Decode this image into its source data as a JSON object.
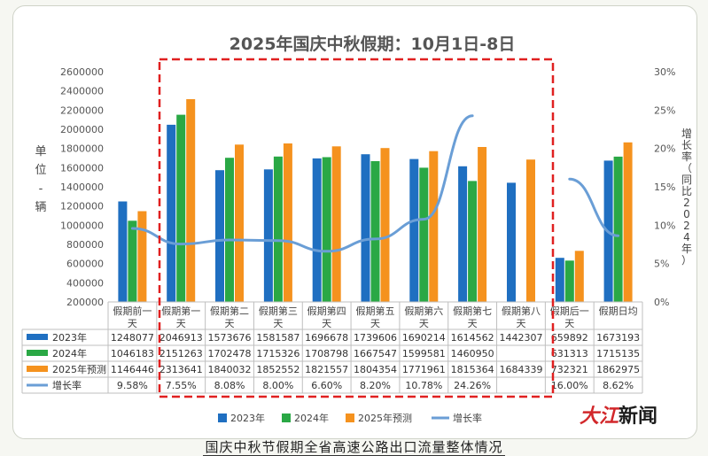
{
  "caption": "国庆中秋节假期全省高速公路出口流量整体情况",
  "watermark": {
    "brand": "大江",
    "suffix": "新闻"
  },
  "colors": {
    "y2023": "#1f6fc1",
    "y2024": "#2aa845",
    "y2025": "#f5921e",
    "growth": "#6a9ed6",
    "highlight": "#e02020"
  },
  "chart_data": {
    "type": "bar",
    "title": "2025年国庆中秋假期：10月1日-8日",
    "ylabel": "单位-辆",
    "y2label": "增长率（同比2024年）",
    "ylim": [
      200000,
      2600000
    ],
    "y_ticks": [
      "200000",
      "400000",
      "600000",
      "800000",
      "1000000",
      "1200000",
      "1400000",
      "1600000",
      "1800000",
      "2000000",
      "2200000",
      "2400000",
      "2600000"
    ],
    "y2lim": [
      0,
      30
    ],
    "y2_ticks": [
      "0%",
      "5%",
      "10%",
      "15%",
      "20%",
      "25%",
      "30%"
    ],
    "categories": [
      "假期前一天",
      "假期第一天",
      "假期第二天",
      "假期第三天",
      "假期第四天",
      "假期第五天",
      "假期第六天",
      "假期第七天",
      "假期第八天",
      "假期后一天",
      "假期日均"
    ],
    "series": [
      {
        "name": "2023年",
        "values": [
          1248077,
          2046913,
          1573676,
          1581587,
          1696678,
          1739606,
          1690214,
          1614562,
          1442307,
          659892,
          1673193
        ]
      },
      {
        "name": "2024年",
        "values": [
          1046183,
          2151263,
          1702478,
          1715326,
          1708798,
          1667547,
          1599581,
          1460950,
          null,
          631313,
          1715135
        ]
      },
      {
        "name": "2025年预测",
        "values": [
          1146446,
          2313641,
          1840032,
          1852552,
          1821557,
          1804354,
          1771961,
          1815364,
          1684339,
          732321,
          1862975
        ]
      }
    ],
    "growth": {
      "name": "增长率",
      "values": [
        9.58,
        7.55,
        8.08,
        8.0,
        6.6,
        8.2,
        10.78,
        24.26,
        null,
        16.0,
        8.62
      ],
      "labels": [
        "9.58%",
        "7.55%",
        "8.08%",
        "8.00%",
        "6.60%",
        "8.20%",
        "10.78%",
        "24.26%",
        "",
        "16.00%",
        "8.62%"
      ]
    },
    "table": {
      "rows": [
        {
          "name": "2023年",
          "cells": [
            "1248077",
            "2046913",
            "1573676",
            "1581587",
            "1696678",
            "1739606",
            "1690214",
            "1614562",
            "1442307",
            "659892",
            "1673193"
          ]
        },
        {
          "name": "2024年",
          "cells": [
            "1046183",
            "2151263",
            "1702478",
            "1715326",
            "1708798",
            "1667547",
            "1599581",
            "1460950",
            "",
            "631313",
            "1715135"
          ]
        },
        {
          "name": "2025年预测",
          "cells": [
            "1146446",
            "2313641",
            "1840032",
            "1852552",
            "1821557",
            "1804354",
            "1771961",
            "1815364",
            "1684339",
            "732321",
            "1862975"
          ]
        },
        {
          "name": "增长率",
          "cells": [
            "9.58%",
            "7.55%",
            "8.08%",
            "8.00%",
            "6.60%",
            "8.20%",
            "10.78%",
            "24.26%",
            "",
            "16.00%",
            "8.62%"
          ]
        }
      ]
    },
    "legend": [
      "2023年",
      "2024年",
      "2025年预测",
      "增长率"
    ],
    "legend_position": "bottom",
    "grid": false
  }
}
